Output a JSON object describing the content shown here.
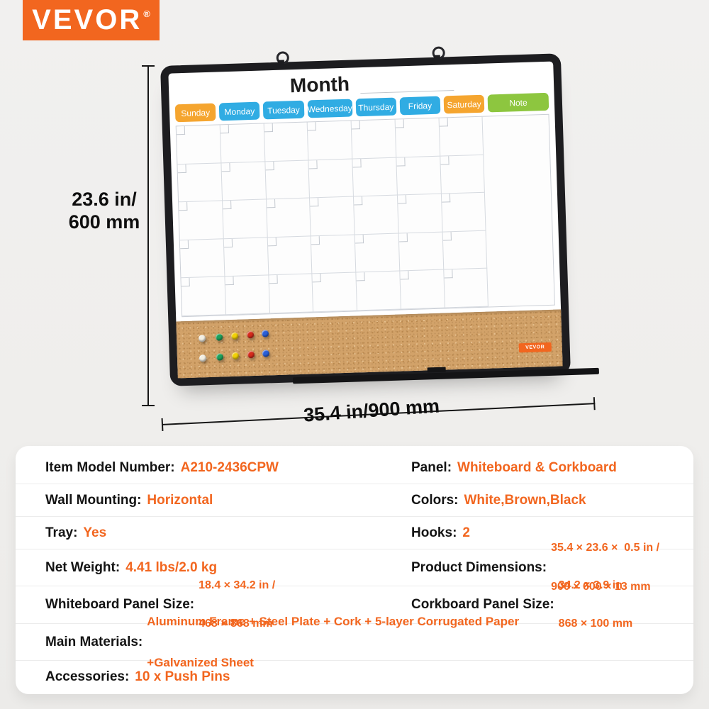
{
  "brand": {
    "logo_text": "VEVOR",
    "registered_mark": "®"
  },
  "colors": {
    "accent_orange": "#F2661F",
    "tab_weekday_blue": "#30ACE3",
    "tab_weekend_orange": "#F5A52F",
    "tab_note_green": "#8DC63F",
    "frame_black": "#1D1D20",
    "cork_brown": "#D2A269",
    "background_gray": "#EFEEEC"
  },
  "board": {
    "title": "Month",
    "days": [
      "Sunday",
      "Monday",
      "Tuesday",
      "Wednesday",
      "Thursday",
      "Friday",
      "Saturday"
    ],
    "note_label": "Note",
    "cork_label_text": "VEVOR",
    "grid": {
      "rows": 5,
      "day_columns": 7
    },
    "pins": {
      "colors": [
        "white",
        "green",
        "yellow",
        "red",
        "blue"
      ],
      "rows": 2,
      "total": 10
    }
  },
  "dimensions": {
    "height_line1": "23.6 in/",
    "height_line2": "600 mm",
    "width": "35.4 in/900 mm"
  },
  "specs": {
    "rows": [
      {
        "left": {
          "label": "Item Model Number:",
          "value": "A210-2436CPW"
        },
        "right": {
          "label": "Panel:",
          "value": "Whiteboard & Corkboard"
        }
      },
      {
        "left": {
          "label": "Wall Mounting:",
          "value": "Horizontal"
        },
        "right": {
          "label": "Colors:",
          "value": "White,Brown,Black"
        }
      },
      {
        "left": {
          "label": "Tray:",
          "value": "Yes"
        },
        "right": {
          "label": "Hooks:",
          "value": "2"
        }
      },
      {
        "left": {
          "label": "Net Weight:",
          "value": "4.41 lbs/2.0 kg"
        },
        "right": {
          "label": "Product Dimensions:",
          "value_line1": "35.4 × 23.6 ×  0.5 in /",
          "value_line2": "900 × 600 × 13 mm"
        }
      },
      {
        "left": {
          "label": "Whiteboard Panel Size:",
          "value_line1": "18.4 × 34.2 in /",
          "value_line2": "468 × 868 mm"
        },
        "right": {
          "label": "Corkboard Panel Size:",
          "value_line1": "34.2 × 3.9 in",
          "value_line2": "868 × 100 mm"
        }
      },
      {
        "full": {
          "label": "Main Materials:",
          "value_line1": "Aluminum Frame + Steel Plate + Cork + 5-layer Corrugated Paper",
          "value_line2": "+Galvanized Sheet"
        }
      },
      {
        "full2": {
          "label": "Accessories:",
          "value": "10 x Push Pins"
        }
      }
    ]
  }
}
